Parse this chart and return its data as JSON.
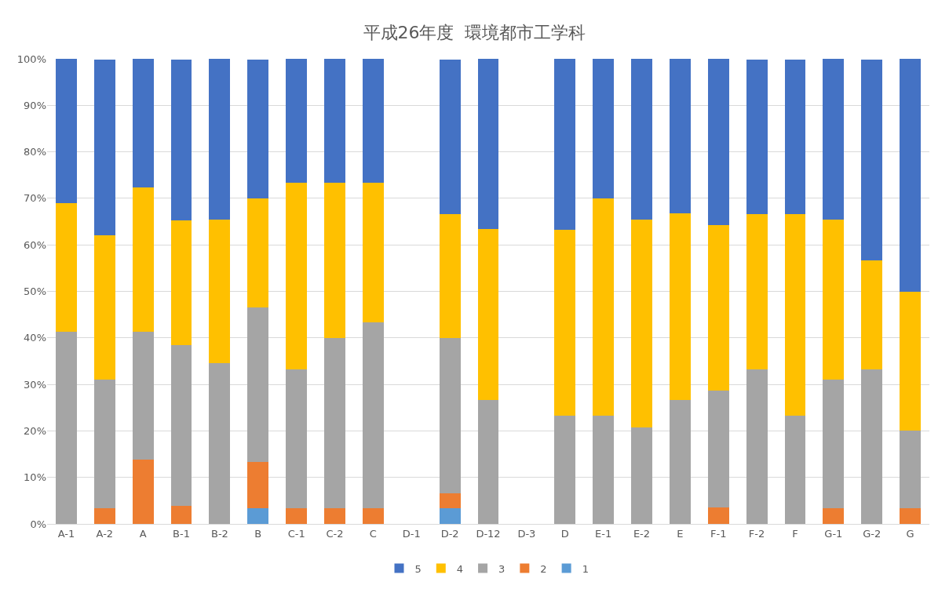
{
  "chart_data": {
    "type": "bar",
    "title": "平成26年度  環境都市工学科",
    "stacked": true,
    "categories": [
      "A-1",
      "A-2",
      "A",
      "B-1",
      "B-2",
      "B",
      "C-1",
      "C-2",
      "C",
      "D-1",
      "D-2",
      "D-12",
      "D-3",
      "D",
      "E-1",
      "E-2",
      "E",
      "F-1",
      "F-2",
      "F",
      "G-1",
      "G-2",
      "G"
    ],
    "series": [
      {
        "name": "1",
        "color": "#5b9bd5",
        "values": [
          0,
          0,
          0,
          0,
          0,
          3.3,
          0,
          0,
          0,
          null,
          3.3,
          0,
          null,
          0,
          0,
          0,
          0,
          0,
          0,
          0,
          0,
          0,
          0
        ]
      },
      {
        "name": "2",
        "color": "#ed7d31",
        "values": [
          0,
          3.4,
          13.8,
          3.8,
          0,
          10.0,
          3.3,
          3.3,
          3.3,
          null,
          3.3,
          0,
          null,
          0,
          0,
          0,
          0,
          3.6,
          0,
          0,
          3.4,
          0,
          3.3
        ]
      },
      {
        "name": "3",
        "color": "#a5a5a5",
        "values": [
          41.4,
          27.6,
          27.6,
          34.6,
          34.5,
          33.3,
          30.0,
          36.7,
          40.0,
          null,
          33.3,
          26.7,
          null,
          23.3,
          23.3,
          20.7,
          26.7,
          25.0,
          33.3,
          23.3,
          27.6,
          33.3,
          16.7
        ]
      },
      {
        "name": "4",
        "color": "#ffc000",
        "values": [
          27.6,
          31.0,
          31.0,
          26.9,
          31.0,
          23.3,
          40.0,
          33.3,
          30.0,
          null,
          26.7,
          36.7,
          null,
          40.0,
          46.7,
          44.8,
          40.0,
          35.7,
          33.3,
          43.3,
          34.5,
          23.3,
          30.0
        ]
      },
      {
        "name": "5",
        "color": "#4472c4",
        "values": [
          31.0,
          37.9,
          27.6,
          34.6,
          34.5,
          30.0,
          26.7,
          26.7,
          26.7,
          null,
          33.3,
          36.7,
          null,
          36.7,
          30.0,
          34.5,
          33.3,
          35.7,
          33.3,
          33.3,
          34.5,
          43.3,
          50.0
        ]
      }
    ],
    "ylim": [
      0,
      100
    ],
    "yticks": [
      {
        "value": 0,
        "label": "0%"
      },
      {
        "value": 10,
        "label": "10%"
      },
      {
        "value": 20,
        "label": "20%"
      },
      {
        "value": 30,
        "label": "30%"
      },
      {
        "value": 40,
        "label": "40%"
      },
      {
        "value": 50,
        "label": "50%"
      },
      {
        "value": 60,
        "label": "60%"
      },
      {
        "value": 70,
        "label": "70%"
      },
      {
        "value": 80,
        "label": "80%"
      },
      {
        "value": 90,
        "label": "90%"
      },
      {
        "value": 100,
        "label": "100%"
      }
    ],
    "grid": "y",
    "legend": "bottom"
  }
}
